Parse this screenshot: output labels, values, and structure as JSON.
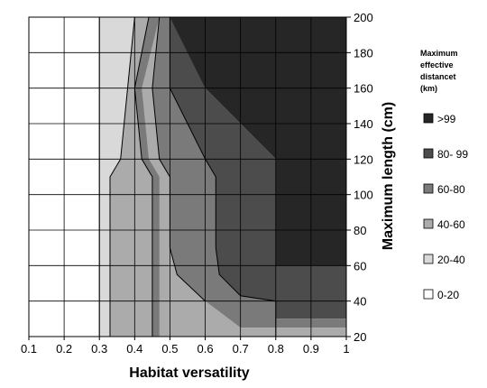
{
  "chart_data": {
    "type": "contour",
    "xlabel": "Habitat versatility",
    "ylabel": "Maximum length (cm)",
    "x_ticks": [
      "0.1",
      "0.2",
      "0.3",
      "0.4",
      "0.5",
      "0.6",
      "0.7",
      "0.8",
      "0.9",
      "1"
    ],
    "y_ticks": [
      "20",
      "40",
      "60",
      "80",
      "100",
      "120",
      "140",
      "160",
      "180",
      "200"
    ],
    "xlim": [
      0.1,
      1
    ],
    "ylim": [
      20,
      200
    ],
    "grid": true,
    "legend_position": "right",
    "legend_title_lines": [
      "Maximum",
      "effective",
      "distancet",
      "(km)"
    ],
    "levels": [
      {
        "label": ">99",
        "color": "#262626"
      },
      {
        "label": "80- 99",
        "color": "#4c4c4c"
      },
      {
        "label": "60-80",
        "color": "#7a7a7a"
      },
      {
        "label": "40-60",
        "color": "#ababab"
      },
      {
        "label": "20-40",
        "color": "#d9d9d9"
      },
      {
        "label": "0-20",
        "color": "#ffffff"
      }
    ],
    "boundaries": {
      "0-20 | 20-40": [
        [
          0.3,
          20
        ],
        [
          0.3,
          120
        ],
        [
          0.3,
          200
        ]
      ],
      "20-40 | 40-60": [
        [
          0.33,
          20
        ],
        [
          0.33,
          110
        ],
        [
          0.36,
          120
        ],
        [
          0.38,
          160
        ],
        [
          0.4,
          200
        ]
      ],
      "40-60 | 60-80": [
        [
          0.45,
          20
        ],
        [
          0.45,
          110
        ],
        [
          0.42,
          120
        ],
        [
          0.4,
          160
        ],
        [
          0.44,
          200
        ]
      ],
      "60-80 | 80-99": [
        [
          0.6,
          40
        ],
        [
          0.52,
          55
        ],
        [
          0.5,
          70
        ],
        [
          0.5,
          110
        ],
        [
          0.47,
          120
        ],
        [
          0.45,
          160
        ],
        [
          0.47,
          200
        ]
      ],
      "80-99 | >99": [
        [
          0.8,
          20
        ],
        [
          0.8,
          40
        ],
        [
          0.7,
          43
        ],
        [
          0.64,
          55
        ],
        [
          0.63,
          70
        ],
        [
          0.63,
          110
        ],
        [
          0.6,
          120
        ],
        [
          0.55,
          140
        ],
        [
          0.5,
          160
        ],
        [
          0.5,
          200
        ]
      ]
    },
    "bands": [
      {
        "level": ">99",
        "polygon": [
          [
            1,
            200
          ],
          [
            0.5,
            200
          ],
          [
            0.5,
            160
          ],
          [
            0.6,
            160
          ],
          [
            0.7,
            140
          ],
          [
            0.8,
            120
          ],
          [
            0.8,
            60
          ],
          [
            1,
            60
          ]
        ]
      },
      {
        "level": "80- 99",
        "polygon": [
          [
            0.5,
            200
          ],
          [
            0.5,
            160
          ],
          [
            0.55,
            140
          ],
          [
            0.6,
            120
          ],
          [
            0.63,
            110
          ],
          [
            0.63,
            70
          ],
          [
            0.64,
            55
          ],
          [
            0.7,
            43
          ],
          [
            0.8,
            40
          ],
          [
            0.8,
            30
          ],
          [
            1,
            30
          ],
          [
            1,
            60
          ],
          [
            0.8,
            60
          ],
          [
            0.8,
            120
          ],
          [
            0.7,
            140
          ],
          [
            0.6,
            160
          ]
        ]
      },
      {
        "level": "60-80",
        "polygon": [
          [
            0.47,
            200
          ],
          [
            0.45,
            160
          ],
          [
            0.47,
            120
          ],
          [
            0.5,
            110
          ],
          [
            0.5,
            70
          ],
          [
            0.52,
            55
          ],
          [
            0.6,
            40
          ],
          [
            0.7,
            25
          ],
          [
            1,
            25
          ],
          [
            1,
            30
          ],
          [
            0.8,
            30
          ],
          [
            0.8,
            40
          ],
          [
            0.7,
            43
          ],
          [
            0.64,
            55
          ],
          [
            0.63,
            70
          ],
          [
            0.63,
            110
          ],
          [
            0.6,
            120
          ],
          [
            0.55,
            140
          ],
          [
            0.5,
            160
          ],
          [
            0.5,
            200
          ]
        ]
      },
      {
        "level": "40-60",
        "polygon": [
          [
            0.44,
            200
          ],
          [
            0.4,
            160
          ],
          [
            0.42,
            120
          ],
          [
            0.45,
            110
          ],
          [
            0.45,
            20
          ],
          [
            1,
            20
          ],
          [
            1,
            25
          ],
          [
            0.7,
            25
          ],
          [
            0.6,
            40
          ],
          [
            0.52,
            55
          ],
          [
            0.5,
            70
          ],
          [
            0.5,
            110
          ],
          [
            0.47,
            120
          ],
          [
            0.45,
            160
          ],
          [
            0.47,
            200
          ]
        ]
      },
      {
        "level": "20-40",
        "polygon": [
          [
            0.3,
            200
          ],
          [
            0.3,
            20
          ],
          [
            0.33,
            20
          ],
          [
            0.33,
            110
          ],
          [
            0.36,
            120
          ],
          [
            0.38,
            160
          ],
          [
            0.4,
            200
          ]
        ]
      },
      {
        "level": "40-60",
        "polygon": [
          [
            0.4,
            200
          ],
          [
            0.38,
            160
          ],
          [
            0.36,
            120
          ],
          [
            0.33,
            110
          ],
          [
            0.33,
            20
          ],
          [
            0.45,
            20
          ],
          [
            0.45,
            110
          ],
          [
            0.42,
            120
          ],
          [
            0.4,
            160
          ],
          [
            0.44,
            200
          ]
        ]
      },
      {
        "level": "60-80",
        "polygon": [
          [
            0.44,
            200
          ],
          [
            0.4,
            160
          ],
          [
            0.42,
            120
          ],
          [
            0.45,
            110
          ],
          [
            0.45,
            20
          ],
          [
            0.47,
            20
          ],
          [
            0.47,
            110
          ],
          [
            0.44,
            120
          ],
          [
            0.42,
            160
          ],
          [
            0.47,
            200
          ]
        ]
      }
    ]
  }
}
